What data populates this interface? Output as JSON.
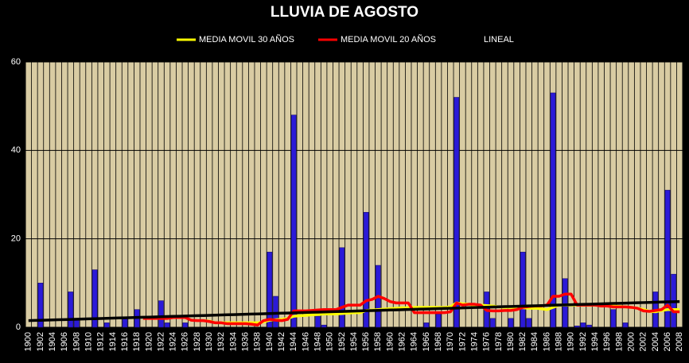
{
  "chart_data": {
    "type": "bar",
    "title": "LLUVIA DE AGOSTO",
    "categories": [
      "1900",
      null,
      "1902",
      null,
      "1904",
      null,
      "1906",
      null,
      "1908",
      null,
      "1910",
      null,
      "1912",
      null,
      "1914",
      null,
      "1916",
      null,
      "1918",
      null,
      "1920",
      null,
      "1922",
      null,
      "1924",
      null,
      "1926",
      null,
      "1928",
      null,
      "1930",
      null,
      "1932",
      null,
      "1934",
      null,
      "1936",
      null,
      "1938",
      null,
      "1940",
      null,
      "1942",
      null,
      "1944",
      null,
      "1946",
      null,
      "1948",
      null,
      "1950",
      null,
      "1952",
      null,
      "1954",
      null,
      "1956",
      null,
      "1958",
      null,
      "1960",
      null,
      "1962",
      null,
      "1964",
      null,
      "1966",
      null,
      "1968",
      null,
      "1970",
      null,
      "1972",
      null,
      "1974",
      null,
      "1976",
      null,
      "1978",
      null,
      "1980",
      null,
      "1982",
      null,
      "1984",
      null,
      "1986",
      null,
      "1988",
      null,
      "1990",
      null,
      "1992",
      null,
      "1994",
      null,
      "1996",
      null,
      "1998",
      null,
      "2000",
      null,
      "2002",
      null,
      "2004",
      null,
      "2006",
      null,
      "2008"
    ],
    "values": [
      0,
      0,
      10,
      0,
      0,
      0,
      0,
      8,
      2,
      0,
      0,
      13,
      0,
      1,
      0,
      0,
      2,
      0,
      4,
      0,
      0,
      0,
      6,
      1,
      0,
      0,
      1,
      0,
      0,
      0,
      0,
      0,
      0,
      0,
      0,
      0,
      0,
      0,
      0,
      0,
      17,
      7,
      0,
      0,
      48,
      0,
      0,
      0,
      2.5,
      0.5,
      0,
      0,
      18,
      0,
      0,
      0,
      26,
      0,
      14,
      0,
      0,
      0,
      0,
      0,
      0,
      0,
      1,
      0,
      3,
      0,
      0,
      52,
      0,
      0,
      0,
      0,
      8,
      2,
      0,
      0,
      2,
      0,
      17,
      2,
      0,
      0,
      0,
      53,
      0,
      11,
      0,
      0.3,
      1,
      0.5,
      0,
      0,
      0,
      4,
      0,
      1,
      0,
      0,
      0,
      0,
      8,
      0,
      31,
      12,
      0
    ],
    "color": "#2b1ad8",
    "series": [
      {
        "name": "MEDIA MOVIL 30 AÑOS",
        "color": "#ffff00",
        "values": [
          null,
          null,
          null,
          null,
          null,
          null,
          null,
          null,
          null,
          null,
          null,
          null,
          null,
          null,
          null,
          null,
          null,
          null,
          null,
          null,
          null,
          null,
          null,
          null,
          null,
          null,
          null,
          null,
          null,
          1.5,
          1.4,
          1,
          1,
          1,
          1,
          1,
          1,
          1,
          1,
          1.2,
          1.6,
          1.7,
          1.8,
          2,
          2.5,
          2.6,
          2.7,
          2.8,
          2.9,
          3,
          3,
          3,
          3.1,
          3.2,
          3.3,
          3.3,
          3.8,
          3.9,
          4,
          4.1,
          4.2,
          4.3,
          4.4,
          4.4,
          4.5,
          4.5,
          4.5,
          4.5,
          4.5,
          4.5,
          4.6,
          5.5,
          5.3,
          5.2,
          5,
          5,
          4.9,
          4.8,
          4.6,
          4.5,
          4.5,
          4.4,
          4.4,
          4.3,
          4.3,
          4.2,
          4,
          4.5,
          5,
          5,
          5,
          5,
          5,
          5,
          5,
          5,
          4.9,
          4.8,
          4.7,
          4.6,
          4.5,
          4.3,
          4,
          3.6,
          3.5,
          3.8,
          4,
          4,
          4
        ]
      },
      {
        "name": "MEDIA MOVIL 20 AÑOS",
        "color": "#ff0000",
        "values": [
          null,
          null,
          null,
          null,
          null,
          null,
          null,
          null,
          null,
          null,
          null,
          null,
          null,
          null,
          null,
          null,
          null,
          null,
          null,
          2,
          2,
          2,
          2,
          2,
          2.2,
          2.2,
          2.2,
          1.6,
          1.5,
          1.5,
          1.3,
          1,
          1,
          0.8,
          0.8,
          0.8,
          0.8,
          0.7,
          0.5,
          1.5,
          1.8,
          1.6,
          1.5,
          1.8,
          3.7,
          3.7,
          3.7,
          3.8,
          3.9,
          4,
          4,
          4,
          4.5,
          5,
          5,
          5,
          6,
          6.3,
          7,
          6.5,
          5.8,
          5.5,
          5.5,
          5.5,
          3.3,
          3.3,
          3.3,
          3.3,
          3.3,
          3.3,
          3.5,
          5.5,
          5,
          5.2,
          5.2,
          5,
          3.8,
          3.7,
          3.7,
          3.8,
          3.8,
          4,
          4.5,
          4.7,
          4.8,
          4.8,
          5,
          7,
          7,
          7.5,
          7.5,
          5,
          5,
          5,
          5,
          4.8,
          4.8,
          4.6,
          4.6,
          4.6,
          4.5,
          4.3,
          3.7,
          3.6,
          3.8,
          4,
          5,
          3.5,
          3.5
        ]
      },
      {
        "name": "LINEAL",
        "color": "#000000",
        "values": [
          1.5,
          1.54,
          1.58,
          1.62,
          1.66,
          1.7,
          1.74,
          1.78,
          1.82,
          1.86,
          1.9,
          1.94,
          1.98,
          2.02,
          2.06,
          2.1,
          2.14,
          2.18,
          2.22,
          2.26,
          2.3,
          2.34,
          2.38,
          2.42,
          2.46,
          2.5,
          2.54,
          2.58,
          2.62,
          2.66,
          2.7,
          2.74,
          2.78,
          2.82,
          2.86,
          2.9,
          2.94,
          2.98,
          3.02,
          3.06,
          3.1,
          3.14,
          3.18,
          3.22,
          3.26,
          3.3,
          3.34,
          3.38,
          3.42,
          3.46,
          3.5,
          3.54,
          3.58,
          3.62,
          3.66,
          3.7,
          3.74,
          3.78,
          3.82,
          3.86,
          3.9,
          3.94,
          3.98,
          4.02,
          4.06,
          4.1,
          4.14,
          4.18,
          4.22,
          4.26,
          4.3,
          4.34,
          4.38,
          4.42,
          4.46,
          4.5,
          4.54,
          4.58,
          4.62,
          4.66,
          4.7,
          4.74,
          4.78,
          4.82,
          4.86,
          4.9,
          4.94,
          4.98,
          5.02,
          5.06,
          5.1,
          5.14,
          5.18,
          5.22,
          5.26,
          5.3,
          5.34,
          5.38,
          5.42,
          5.46,
          5.5,
          5.54,
          5.58,
          5.62,
          5.66,
          5.7,
          5.74,
          5.78,
          5.82
        ]
      }
    ],
    "ylim": [
      0,
      60
    ],
    "yticks": [
      0,
      20,
      40,
      60
    ],
    "grid": true
  }
}
